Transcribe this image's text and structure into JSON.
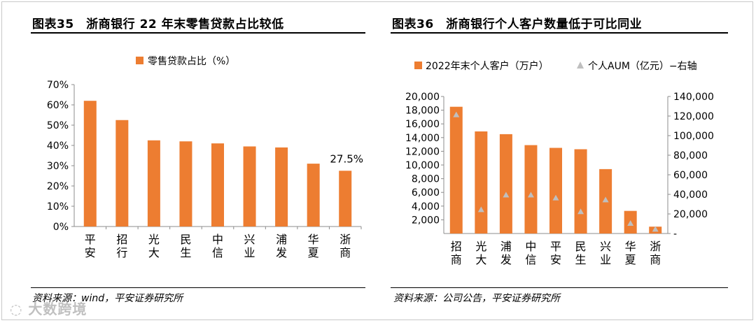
{
  "left": {
    "title": "图表35　浙商银行 22 年末零售贷款占比较低",
    "source": "资料来源：wind，平安证券研究所"
  },
  "right": {
    "title": "图表36　浙商银行个人客户数量低于可比同业",
    "source": "资料来源：公司公告，平安证券研究所"
  },
  "watermark": "大数跨境",
  "colors": {
    "bar": "#ED7D31",
    "marker": "#BFBFBF"
  },
  "chart_data": [
    {
      "type": "bar",
      "title": "浙商银行 22 年末零售贷款占比较低",
      "categories": [
        "平安",
        "招行",
        "光大",
        "民生",
        "中信",
        "兴业",
        "浦发",
        "华夏",
        "浙商"
      ],
      "category_labels": [
        [
          "平",
          "安"
        ],
        [
          "招",
          "行"
        ],
        [
          "光",
          "大"
        ],
        [
          "民",
          "生"
        ],
        [
          "中",
          "信"
        ],
        [
          "兴",
          "业"
        ],
        [
          "浦",
          "发"
        ],
        [
          "华",
          "夏"
        ],
        [
          "浙",
          "商"
        ]
      ],
      "series": [
        {
          "name": "零售贷款占比（%）",
          "values": [
            62.0,
            52.5,
            42.5,
            42.0,
            41.0,
            39.5,
            39.0,
            31.0,
            27.5
          ]
        }
      ],
      "ylim": [
        0,
        70
      ],
      "yticks": [
        0,
        10,
        20,
        30,
        40,
        50,
        60,
        70
      ],
      "ytick_labels": [
        "0%",
        "10%",
        "20%",
        "30%",
        "40%",
        "50%",
        "60%",
        "70%"
      ],
      "annotation": {
        "category": "浙商",
        "text": "27.5%"
      },
      "legend": "top"
    },
    {
      "type": "bar",
      "title": "浙商银行个人客户数量低于可比同业",
      "categories": [
        "招商",
        "光大",
        "浦发",
        "中信",
        "平安",
        "民生",
        "兴业",
        "华夏",
        "浙商"
      ],
      "category_labels": [
        [
          "招",
          "商"
        ],
        [
          "光",
          "大"
        ],
        [
          "浦",
          "发"
        ],
        [
          "中",
          "信"
        ],
        [
          "平",
          "安"
        ],
        [
          "民",
          "生"
        ],
        [
          "兴",
          "业"
        ],
        [
          "华",
          "夏"
        ],
        [
          "浙",
          "商"
        ]
      ],
      "series": [
        {
          "name": "2022年末个人客户（万户）",
          "kind": "bar",
          "axis": "left",
          "values": [
            18500,
            14900,
            14500,
            12900,
            12500,
            12300,
            9400,
            3300,
            1000
          ]
        },
        {
          "name": "个人AUM（亿元）−右轴",
          "kind": "marker",
          "axis": "right",
          "values": [
            121000,
            24000,
            39000,
            39000,
            36000,
            22000,
            34000,
            10000,
            4000
          ]
        }
      ],
      "ylim": [
        0,
        20000
      ],
      "yticks": [
        2000,
        4000,
        6000,
        8000,
        10000,
        12000,
        14000,
        16000,
        18000,
        20000
      ],
      "ytick_labels": [
        "2,000",
        "4,000",
        "6,000",
        "8,000",
        "10,000",
        "12,000",
        "14,000",
        "16,000",
        "18,000",
        "20,000"
      ],
      "y2lim": [
        0,
        140000
      ],
      "y2ticks": [
        0,
        20000,
        40000,
        60000,
        80000,
        100000,
        120000,
        140000
      ],
      "y2tick_labels": [
        "-",
        "20,000",
        "40,000",
        "60,000",
        "80,000",
        "100,000",
        "120,000",
        "140,000"
      ],
      "legend": "top"
    }
  ]
}
